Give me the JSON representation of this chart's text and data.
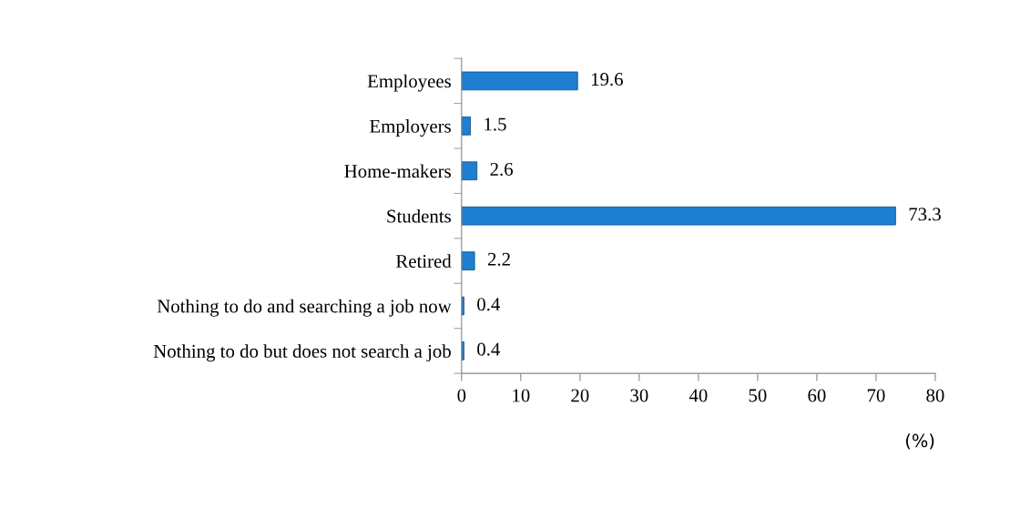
{
  "chart_data": {
    "type": "bar",
    "orientation": "horizontal",
    "categories": [
      "Employees",
      "Employers",
      "Home-makers",
      "Students",
      "Retired",
      "Nothing to do and searching a job now",
      "Nothing to do but does not search a job"
    ],
    "values": [
      19.6,
      1.5,
      2.6,
      73.3,
      2.2,
      0.4,
      0.4
    ],
    "color": "#1f7fd0",
    "xlim": [
      0,
      80
    ],
    "xticks": [
      0,
      10,
      20,
      30,
      40,
      50,
      60,
      70,
      80
    ],
    "xlabel": "(%)",
    "data_labels": true,
    "grid": false,
    "legend": false
  }
}
